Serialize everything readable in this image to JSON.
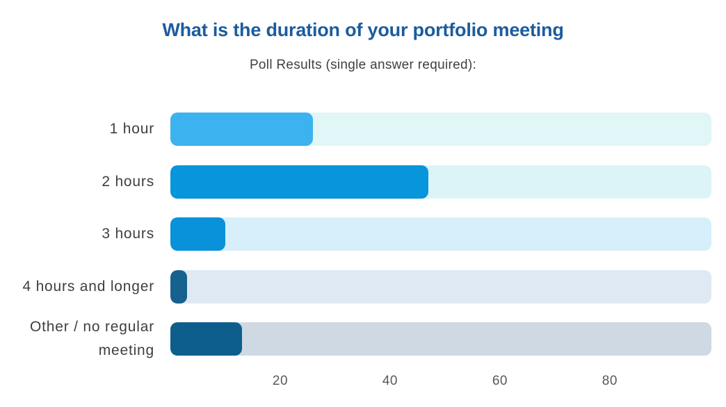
{
  "chart_data": {
    "type": "bar",
    "orientation": "horizontal",
    "title": "What is the duration of your portfolio meeting",
    "subtitle": "Poll Results (single answer required):",
    "categories": [
      "1 hour",
      "2 hours",
      "3 hours",
      "4 hours and longer",
      "Other / no regular meeting"
    ],
    "values": [
      26,
      47,
      10,
      3,
      13
    ],
    "x_ticks": [
      20,
      40,
      60,
      80
    ],
    "xlim": [
      0,
      98.5
    ],
    "xlabel": "",
    "ylabel": "",
    "grid": false,
    "legend": false,
    "bar_colors": [
      "#3CB3EF",
      "#0795DC",
      "#0992DA",
      "#16618E",
      "#0E5E8D"
    ],
    "track_colors": [
      "#E1F6F6",
      "#DCF4F7",
      "#D7EFFB",
      "#DFE9F3",
      "#CFD9E4"
    ]
  },
  "colors": {
    "title": "#1B5C9E",
    "subtitle_text": "#404040",
    "category_label_text": "#3F3F3F",
    "tick_text": "#595959",
    "background": "#FFFFFF"
  },
  "layout": {
    "row_tops": [
      162,
      238,
      313,
      389,
      464
    ],
    "track_left": 245,
    "track_width": 778,
    "track_height": 48
  }
}
